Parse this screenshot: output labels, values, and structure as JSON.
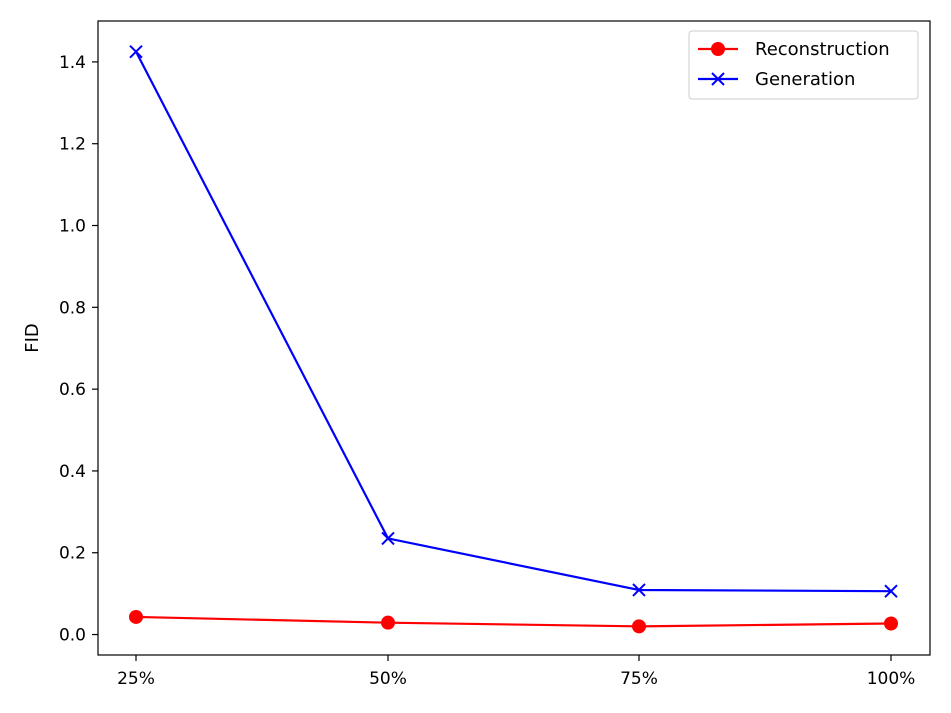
{
  "chart_data": {
    "type": "line",
    "categories": [
      "25%",
      "50%",
      "75%",
      "100%"
    ],
    "series": [
      {
        "name": "Reconstruction",
        "values": [
          0.043,
          0.029,
          0.02,
          0.027
        ],
        "color": "#ff0000",
        "marker": "circle"
      },
      {
        "name": "Generation",
        "values": [
          1.425,
          0.235,
          0.109,
          0.106
        ],
        "color": "#0000ff",
        "marker": "x"
      }
    ],
    "xlabel": "",
    "ylabel": "FID",
    "ylim": [
      -0.05,
      1.5
    ],
    "yticks": [
      "0.0",
      "0.2",
      "0.4",
      "0.6",
      "0.8",
      "1.0",
      "1.2",
      "1.4"
    ],
    "grid": false,
    "legend": "top-right"
  }
}
